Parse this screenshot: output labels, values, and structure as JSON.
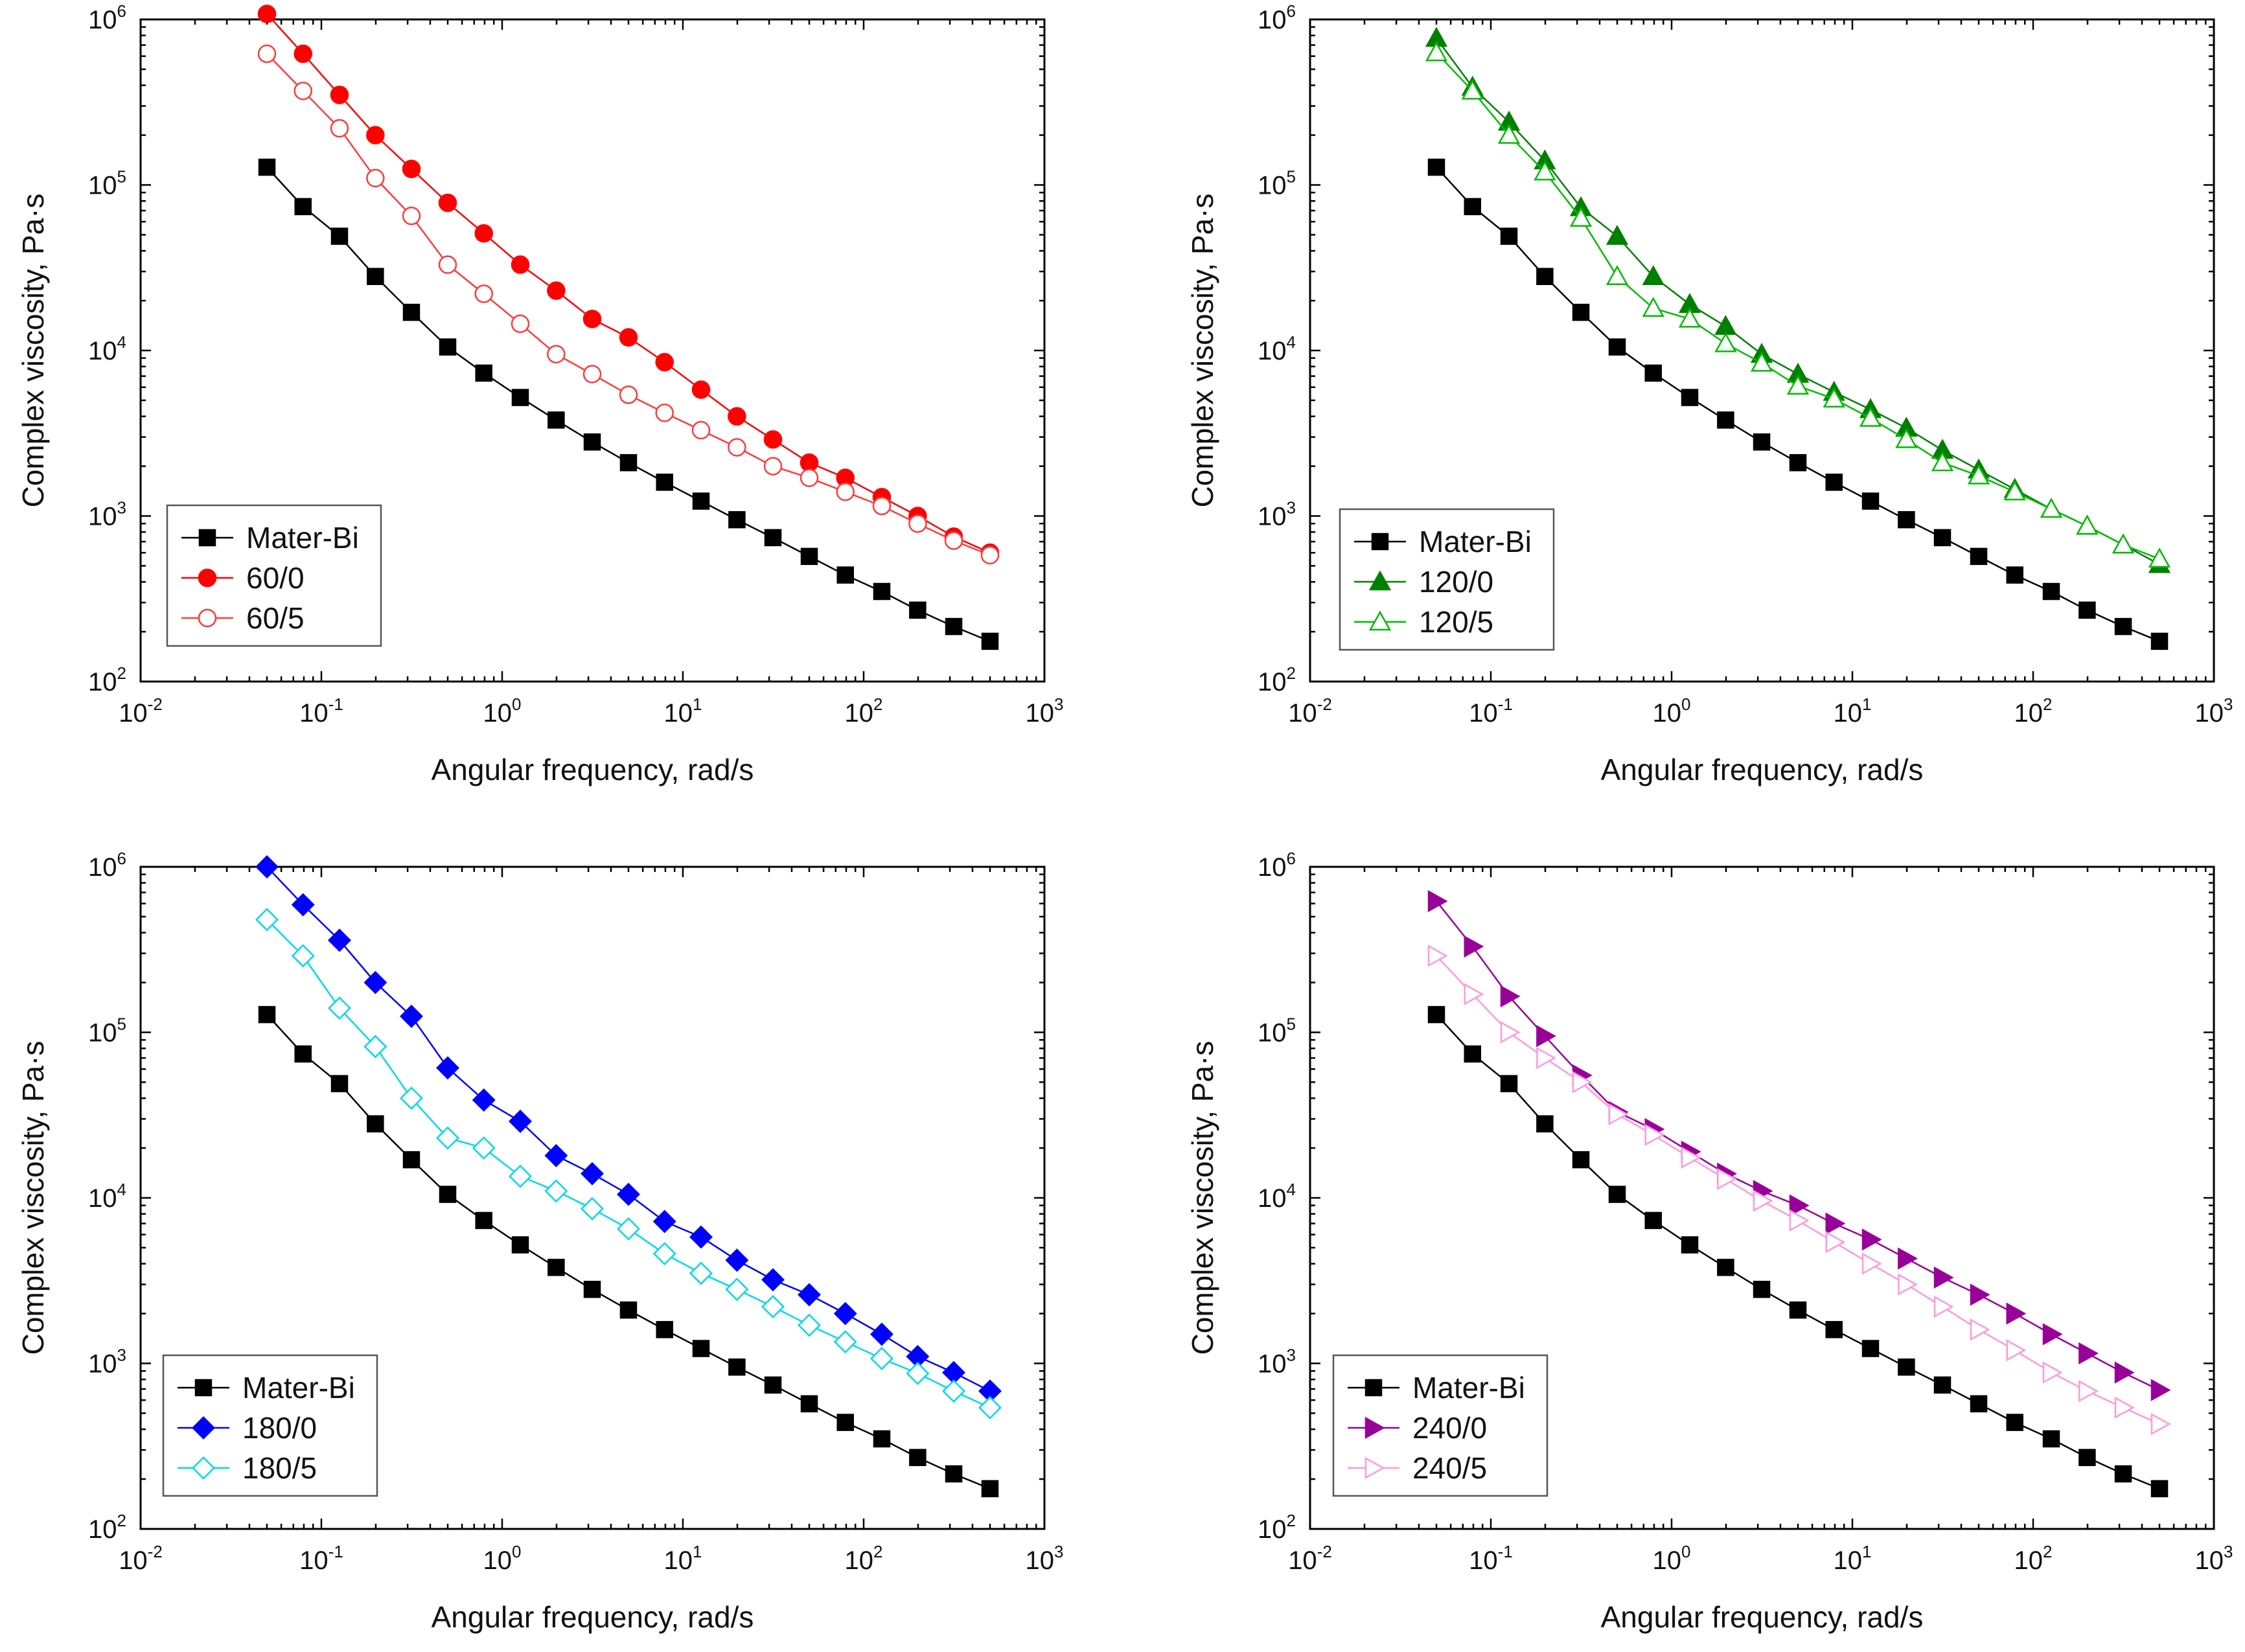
{
  "chart_data": [
    {
      "type": "scatter",
      "xscale": "log",
      "yscale": "log",
      "xlim": [
        0.01,
        1000
      ],
      "ylim": [
        100,
        1000000
      ],
      "xlabel": "Angular frequency, rad/s",
      "ylabel": "Complex viscosity, Pa·s",
      "x_ticks": [
        {
          "base": "10",
          "exp": "-2"
        },
        {
          "base": "10",
          "exp": "-1"
        },
        {
          "base": "10",
          "exp": "0"
        },
        {
          "base": "10",
          "exp": "1"
        },
        {
          "base": "10",
          "exp": "2"
        },
        {
          "base": "10",
          "exp": "3"
        }
      ],
      "y_ticks": [
        {
          "base": "10",
          "exp": "2"
        },
        {
          "base": "10",
          "exp": "3"
        },
        {
          "base": "10",
          "exp": "4"
        },
        {
          "base": "10",
          "exp": "5"
        },
        {
          "base": "10",
          "exp": "6"
        }
      ],
      "legend_position": "bottom-left",
      "x": [
        0.05,
        0.0792,
        0.126,
        0.199,
        0.315,
        0.5,
        0.792,
        1.26,
        1.99,
        3.15,
        5,
        7.92,
        12.6,
        19.9,
        31.5,
        50,
        79.2,
        126,
        199,
        315,
        500
      ],
      "series": [
        {
          "name": "Mater-Bi",
          "color": "#000000",
          "marker": "square",
          "filled": true,
          "values": [
            128000,
            74000,
            49000,
            28000,
            17000,
            10500,
            7300,
            5200,
            3800,
            2800,
            2100,
            1600,
            1230,
            950,
            740,
            570,
            440,
            350,
            270,
            215,
            175
          ]
        },
        {
          "name": "60/0",
          "color": "#ff0000",
          "marker": "circle",
          "filled": true,
          "values": [
            1080000,
            620000,
            350000,
            200000,
            125000,
            78000,
            51000,
            33000,
            23000,
            15500,
            12000,
            8500,
            5800,
            4000,
            2900,
            2100,
            1700,
            1300,
            1000,
            750,
            600
          ]
        },
        {
          "name": "60/5",
          "color": "#ff3b3b",
          "marker": "circle",
          "filled": false,
          "values": [
            620000,
            370000,
            220000,
            110000,
            65000,
            33000,
            22000,
            14500,
            9500,
            7200,
            5400,
            4200,
            3300,
            2600,
            2000,
            1700,
            1400,
            1150,
            900,
            710,
            580
          ]
        }
      ]
    },
    {
      "type": "scatter",
      "xscale": "log",
      "yscale": "log",
      "xlim": [
        0.01,
        1000
      ],
      "ylim": [
        100,
        1000000
      ],
      "xlabel": "Angular frequency, rad/s",
      "ylabel": "Complex viscosity, Pa·s",
      "x_ticks": [
        {
          "base": "10",
          "exp": "-2"
        },
        {
          "base": "10",
          "exp": "-1"
        },
        {
          "base": "10",
          "exp": "0"
        },
        {
          "base": "10",
          "exp": "1"
        },
        {
          "base": "10",
          "exp": "2"
        },
        {
          "base": "10",
          "exp": "3"
        }
      ],
      "y_ticks": [
        {
          "base": "10",
          "exp": "2"
        },
        {
          "base": "10",
          "exp": "3"
        },
        {
          "base": "10",
          "exp": "4"
        },
        {
          "base": "10",
          "exp": "5"
        },
        {
          "base": "10",
          "exp": "6"
        }
      ],
      "legend_position": "bottom-left",
      "x": [
        0.05,
        0.0792,
        0.126,
        0.199,
        0.315,
        0.5,
        0.792,
        1.26,
        1.99,
        3.15,
        5,
        7.92,
        12.6,
        19.9,
        31.5,
        50,
        79.2,
        126,
        199,
        315,
        500
      ],
      "series": [
        {
          "name": "Mater-Bi",
          "color": "#000000",
          "marker": "square",
          "filled": true,
          "values": [
            128000,
            74000,
            49000,
            28000,
            17000,
            10500,
            7300,
            5200,
            3800,
            2800,
            2100,
            1600,
            1230,
            950,
            740,
            570,
            440,
            350,
            270,
            215,
            175
          ]
        },
        {
          "name": "120/0",
          "color": "#008000",
          "marker": "triangle-up",
          "filled": true,
          "values": [
            770000,
            390000,
            240000,
            140000,
            73000,
            49000,
            28000,
            19000,
            14000,
            9500,
            7200,
            5600,
            4400,
            3400,
            2500,
            1900,
            1450,
            1100,
            870,
            670,
            510
          ]
        },
        {
          "name": "120/5",
          "color": "#00bb00",
          "marker": "triangle-up",
          "filled": false,
          "values": [
            630000,
            370000,
            200000,
            120000,
            63000,
            28000,
            18000,
            15500,
            11000,
            8400,
            6100,
            5100,
            3900,
            2900,
            2100,
            1750,
            1400,
            1100,
            870,
            670,
            550
          ]
        }
      ]
    },
    {
      "type": "scatter",
      "xscale": "log",
      "yscale": "log",
      "xlim": [
        0.01,
        1000
      ],
      "ylim": [
        100,
        1000000
      ],
      "xlabel": "Angular frequency, rad/s",
      "ylabel": "Complex viscosity, Pa·s",
      "x_ticks": [
        {
          "base": "10",
          "exp": "-2"
        },
        {
          "base": "10",
          "exp": "-1"
        },
        {
          "base": "10",
          "exp": "0"
        },
        {
          "base": "10",
          "exp": "1"
        },
        {
          "base": "10",
          "exp": "2"
        },
        {
          "base": "10",
          "exp": "3"
        }
      ],
      "y_ticks": [
        {
          "base": "10",
          "exp": "2"
        },
        {
          "base": "10",
          "exp": "3"
        },
        {
          "base": "10",
          "exp": "4"
        },
        {
          "base": "10",
          "exp": "5"
        },
        {
          "base": "10",
          "exp": "6"
        }
      ],
      "legend_position": "bottom-left",
      "x": [
        0.05,
        0.0792,
        0.126,
        0.199,
        0.315,
        0.5,
        0.792,
        1.26,
        1.99,
        3.15,
        5,
        7.92,
        12.6,
        19.9,
        31.5,
        50,
        79.2,
        126,
        199,
        315,
        500
      ],
      "series": [
        {
          "name": "Mater-Bi",
          "color": "#000000",
          "marker": "square",
          "filled": true,
          "values": [
            128000,
            74000,
            49000,
            28000,
            17000,
            10500,
            7300,
            5200,
            3800,
            2800,
            2100,
            1600,
            1230,
            950,
            740,
            570,
            440,
            350,
            270,
            215,
            175
          ]
        },
        {
          "name": "180/0",
          "color": "#0000ff",
          "marker": "diamond",
          "filled": true,
          "values": [
            1000000,
            590000,
            360000,
            200000,
            125000,
            61000,
            39000,
            29000,
            18000,
            14000,
            10500,
            7200,
            5800,
            4200,
            3200,
            2600,
            2000,
            1500,
            1100,
            880,
            680
          ]
        },
        {
          "name": "180/5",
          "color": "#00d8e8",
          "marker": "diamond",
          "filled": false,
          "values": [
            480000,
            290000,
            140000,
            82000,
            40000,
            23000,
            20000,
            13500,
            11000,
            8600,
            6500,
            4600,
            3500,
            2800,
            2200,
            1700,
            1350,
            1070,
            870,
            680,
            540
          ]
        }
      ]
    },
    {
      "type": "scatter",
      "xscale": "log",
      "yscale": "log",
      "xlim": [
        0.01,
        1000
      ],
      "ylim": [
        100,
        1000000
      ],
      "xlabel": "Angular frequency, rad/s",
      "ylabel": "Complex viscosity, Pa·s",
      "x_ticks": [
        {
          "base": "10",
          "exp": "-2"
        },
        {
          "base": "10",
          "exp": "-1"
        },
        {
          "base": "10",
          "exp": "0"
        },
        {
          "base": "10",
          "exp": "1"
        },
        {
          "base": "10",
          "exp": "2"
        },
        {
          "base": "10",
          "exp": "3"
        }
      ],
      "y_ticks": [
        {
          "base": "10",
          "exp": "2"
        },
        {
          "base": "10",
          "exp": "3"
        },
        {
          "base": "10",
          "exp": "4"
        },
        {
          "base": "10",
          "exp": "5"
        },
        {
          "base": "10",
          "exp": "6"
        }
      ],
      "legend_position": "bottom-left",
      "x": [
        0.05,
        0.0792,
        0.126,
        0.199,
        0.315,
        0.5,
        0.792,
        1.26,
        1.99,
        3.15,
        5,
        7.92,
        12.6,
        19.9,
        31.5,
        50,
        79.2,
        126,
        199,
        315,
        500
      ],
      "series": [
        {
          "name": "Mater-Bi",
          "color": "#000000",
          "marker": "square",
          "filled": true,
          "values": [
            128000,
            74000,
            49000,
            28000,
            17000,
            10500,
            7300,
            5200,
            3800,
            2800,
            2100,
            1600,
            1230,
            950,
            740,
            570,
            440,
            350,
            270,
            215,
            175
          ]
        },
        {
          "name": "240/0",
          "color": "#990099",
          "marker": "triangle-right",
          "filled": true,
          "values": [
            620000,
            330000,
            165000,
            95000,
            55000,
            33000,
            26000,
            19000,
            14000,
            11000,
            9000,
            7000,
            5600,
            4300,
            3300,
            2600,
            2000,
            1500,
            1150,
            880,
            690
          ]
        },
        {
          "name": "240/5",
          "color": "#ff99dd",
          "marker": "triangle-right",
          "filled": false,
          "values": [
            290000,
            170000,
            100000,
            70000,
            50000,
            32000,
            24000,
            17500,
            13000,
            9600,
            7300,
            5400,
            4000,
            3000,
            2200,
            1600,
            1200,
            880,
            680,
            540,
            430
          ]
        }
      ]
    }
  ]
}
